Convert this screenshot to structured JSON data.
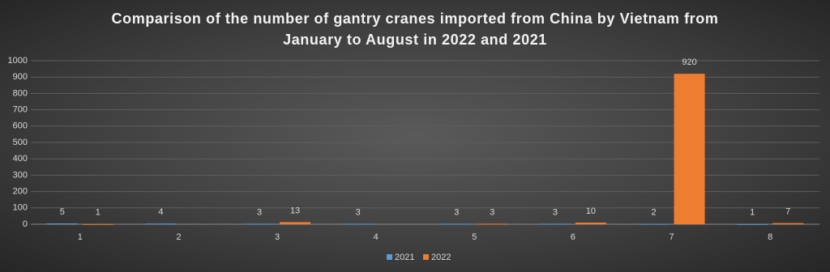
{
  "chart_data": {
    "type": "bar",
    "title": "Comparison of the number of gantry cranes imported from China by Vietnam from January to August in 2022 and 2021",
    "categories": [
      "1",
      "2",
      "3",
      "4",
      "5",
      "6",
      "7",
      "8"
    ],
    "series": [
      {
        "name": "2021",
        "color": "#5b9bd5",
        "values": [
          5,
          4,
          3,
          3,
          3,
          3,
          2,
          1
        ]
      },
      {
        "name": "2022",
        "color": "#ed7d31",
        "values": [
          1,
          null,
          13,
          null,
          3,
          10,
          920,
          7
        ]
      }
    ],
    "ylim": [
      0,
      1000
    ],
    "yticks": [
      0,
      100,
      200,
      300,
      400,
      500,
      600,
      700,
      800,
      900,
      1000
    ],
    "grid": true,
    "legend": "bottom"
  }
}
